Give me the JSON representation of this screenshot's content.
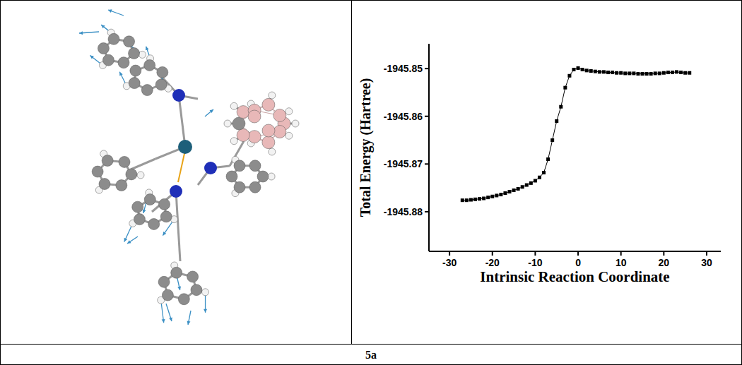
{
  "chart_data": {
    "type": "line",
    "caption": "5a",
    "x_label": "Intrinsic Reaction Coordinate",
    "y_label": "Total Energy (Hartree)",
    "color": "#000000",
    "marker": "square",
    "line_style": "solid",
    "x": [
      -27,
      -26,
      -25,
      -24,
      -23,
      -22,
      -21,
      -20,
      -19,
      -18,
      -17,
      -16,
      -15,
      -14,
      -13,
      -12,
      -11,
      -10,
      -9,
      -8,
      -7,
      -6,
      -5,
      -4,
      -3,
      -2,
      -1,
      0,
      1,
      2,
      3,
      4,
      5,
      6,
      7,
      8,
      9,
      10,
      11,
      12,
      13,
      14,
      15,
      16,
      17,
      18,
      19,
      20,
      21,
      22,
      23,
      24,
      25,
      26
    ],
    "values": [
      -1945.8776,
      -1945.8776,
      -1945.8775,
      -1945.8774,
      -1945.8773,
      -1945.8772,
      -1945.877,
      -1945.8768,
      -1945.8766,
      -1945.8764,
      -1945.8761,
      -1945.8758,
      -1945.8755,
      -1945.8752,
      -1945.8748,
      -1945.8744,
      -1945.874,
      -1945.8735,
      -1945.8728,
      -1945.8718,
      -1945.869,
      -1945.865,
      -1945.861,
      -1945.858,
      -1945.854,
      -1945.8515,
      -1945.8502,
      -1945.8499,
      -1945.8502,
      -1945.8504,
      -1945.8505,
      -1945.8506,
      -1945.8507,
      -1945.8507,
      -1945.8508,
      -1945.8508,
      -1945.8509,
      -1945.8509,
      -1945.851,
      -1945.851,
      -1945.851,
      -1945.8511,
      -1945.8511,
      -1945.8511,
      -1945.8511,
      -1945.851,
      -1945.851,
      -1945.8509,
      -1945.8508,
      -1945.8508,
      -1945.8507,
      -1945.8508,
      -1945.8509,
      -1945.8509
    ],
    "xlim": [
      -34.8,
      33.3
    ],
    "xticks": [
      -30,
      -20,
      -10,
      0,
      10,
      20,
      30
    ],
    "ylim": [
      -1945.8883,
      -1945.8448
    ],
    "yticks": [
      -1945.85,
      -1945.86,
      -1945.87,
      -1945.88
    ],
    "grid": false
  }
}
